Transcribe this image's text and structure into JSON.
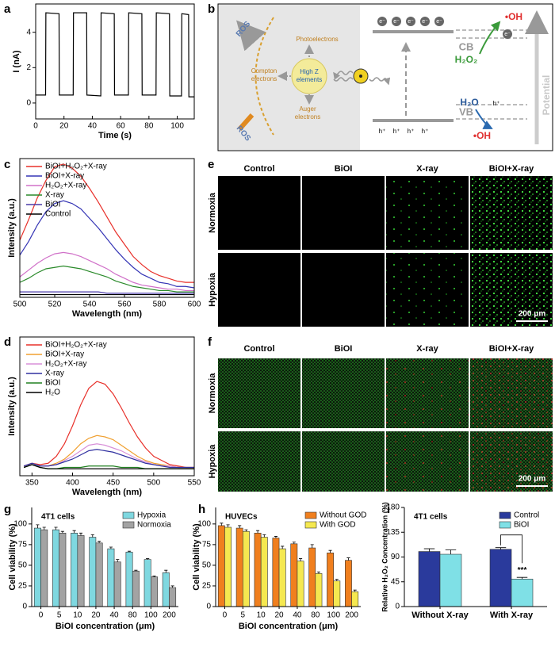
{
  "panel_labels": [
    "a",
    "b",
    "c",
    "d",
    "e",
    "f",
    "g",
    "h",
    "i"
  ],
  "chart_data": [
    {
      "type": "line",
      "x_label": "Time (s)",
      "y_label": "I (nA)",
      "x": [
        0,
        7,
        7.2,
        16.5,
        16.7,
        26.5,
        26.7,
        36,
        36.2,
        46,
        46.2,
        55.5,
        55.7,
        65.5,
        65.7,
        75,
        75.2,
        85,
        85.2,
        94.5,
        94.7,
        103,
        103.2,
        108,
        108.2,
        112
      ],
      "series": [
        {
          "color": "#000000",
          "values": [
            0.45,
            0.45,
            5.1,
            5.05,
            0.45,
            0.45,
            5.1,
            5.1,
            0.45,
            0.4,
            5.1,
            5.05,
            0.45,
            0.45,
            5.1,
            5.05,
            0.45,
            0.45,
            5.1,
            5.05,
            0.4,
            0.4,
            5.05,
            5.0,
            0.35,
            0.35
          ]
        }
      ],
      "xlim": [
        0,
        112
      ],
      "ylim": [
        -0.9,
        5.6
      ],
      "xticks": [
        0,
        20,
        40,
        60,
        80,
        100
      ],
      "yticks": [
        0,
        2,
        4
      ]
    },
    {
      "type": "line",
      "x_label": "Wavelength (nm)",
      "y_label": "Intensity (a.u.)",
      "legend": "upper left",
      "x": [
        500,
        505,
        510,
        515,
        520,
        525,
        530,
        535,
        540,
        545,
        550,
        555,
        560,
        565,
        570,
        575,
        580,
        585,
        590,
        595,
        600
      ],
      "series": [
        {
          "name": "BiOI+H₂O₂+X-ray",
          "color": "#e8302a",
          "values": [
            42,
            57,
            73,
            86,
            96,
            98,
            95,
            89,
            80,
            70,
            59,
            48,
            39,
            30,
            24,
            19,
            16,
            14,
            12,
            11,
            11
          ]
        },
        {
          "name": "BiOI+X-ray",
          "color": "#3535b5",
          "values": [
            31,
            41,
            53,
            63,
            69,
            71,
            69,
            65,
            58,
            51,
            43,
            35,
            28,
            22,
            17,
            14,
            11,
            10,
            8,
            8,
            7
          ]
        },
        {
          "name": "H₂O₂+X-ray",
          "color": "#d070c8",
          "values": [
            15,
            20,
            25,
            29,
            32,
            33,
            32,
            30,
            27,
            24,
            21,
            17,
            14,
            11,
            9,
            8,
            7,
            6,
            6,
            5,
            5
          ]
        },
        {
          "name": "X-ray",
          "color": "#2a8a2a",
          "values": [
            11,
            14,
            18,
            21,
            22,
            23,
            22,
            21,
            19,
            17,
            15,
            12,
            10,
            8,
            7,
            6,
            5,
            5,
            4,
            4,
            4
          ]
        },
        {
          "name": "BiOI",
          "color": "#4a3aa8",
          "values": [
            4,
            4,
            4,
            4,
            4,
            4,
            4,
            4,
            4,
            4,
            3,
            3,
            3,
            3,
            3,
            3,
            3,
            3,
            3,
            3,
            3
          ]
        },
        {
          "name": "Control",
          "color": "#000000",
          "values": [
            2,
            2,
            2,
            2,
            2,
            2,
            2,
            2,
            2,
            2,
            2,
            2,
            2,
            2,
            2,
            2,
            2,
            2,
            2,
            2,
            2
          ]
        }
      ],
      "xlim": [
        500,
        600
      ],
      "ylim": [
        0,
        102
      ],
      "xticks": [
        500,
        520,
        540,
        560,
        580,
        600
      ]
    },
    {
      "type": "line",
      "x_label": "Wavelength (nm)",
      "y_label": "Intensity (a.u.)",
      "legend": "upper left",
      "x": [
        340,
        350,
        360,
        370,
        380,
        390,
        400,
        410,
        420,
        430,
        440,
        450,
        460,
        470,
        480,
        490,
        500,
        510,
        520,
        530,
        540,
        550
      ],
      "series": [
        {
          "name": "BiOI+H₂O₂+X-ray",
          "color": "#e8302a",
          "values": [
            7,
            9,
            8,
            9,
            14,
            23,
            36,
            51,
            63,
            68,
            66,
            59,
            49,
            38,
            28,
            20,
            14,
            11,
            8,
            7,
            6,
            6
          ]
        },
        {
          "name": "BiOI+X-ray",
          "color": "#f0a030",
          "values": [
            7,
            9,
            7,
            7,
            9,
            12,
            17,
            23,
            27,
            29,
            28,
            26,
            22,
            18,
            14,
            11,
            9,
            8,
            7,
            6,
            6,
            6
          ]
        },
        {
          "name": "H₂O₂+X-ray",
          "color": "#d890d8",
          "values": [
            7,
            9,
            7,
            7,
            8,
            11,
            14,
            18,
            22,
            23,
            22,
            20,
            18,
            15,
            12,
            10,
            8,
            7,
            7,
            6,
            6,
            6
          ]
        },
        {
          "name": "X-ray",
          "color": "#3030a0",
          "values": [
            7,
            9,
            7,
            7,
            8,
            10,
            12,
            15,
            18,
            19,
            18,
            17,
            15,
            13,
            11,
            9,
            8,
            7,
            6,
            6,
            6,
            6
          ]
        },
        {
          "name": "BiOI",
          "color": "#208020",
          "values": [
            6,
            8,
            6,
            5,
            5,
            6,
            6,
            6,
            7,
            7,
            7,
            7,
            6,
            6,
            6,
            5,
            5,
            5,
            5,
            5,
            5,
            5
          ]
        },
        {
          "name": "H₂O",
          "color": "#000000",
          "values": [
            6,
            8,
            6,
            5,
            5,
            5,
            5,
            5,
            5,
            5,
            5,
            5,
            5,
            5,
            5,
            5,
            5,
            5,
            5,
            5,
            5,
            5
          ]
        }
      ],
      "xlim": [
        335,
        550
      ],
      "ylim": [
        0,
        100
      ],
      "xticks": [
        350,
        400,
        450,
        500,
        550
      ]
    },
    {
      "type": "bar",
      "title": "4T1 cells",
      "x_label": "BiOI concentration (μm)",
      "y_label": "Cell viability (%)",
      "legend": "upper right",
      "categories": [
        "0",
        "5",
        "10",
        "20",
        "40",
        "80",
        "100",
        "200"
      ],
      "series": [
        {
          "name": "Hypoxia",
          "color": "#7fd8e0",
          "values": [
            95,
            93,
            89,
            84,
            70,
            66,
            57,
            41
          ],
          "errors": [
            4,
            3,
            3,
            3,
            2,
            1,
            1,
            3
          ]
        },
        {
          "name": "Normoxia",
          "color": "#a3a3a3",
          "values": [
            93,
            89,
            86,
            77,
            54,
            43,
            36,
            23
          ],
          "errors": [
            3,
            2,
            3,
            2,
            3,
            1,
            1,
            2
          ]
        }
      ],
      "ylim": [
        0,
        120
      ],
      "yticks": [
        0,
        25,
        50,
        75,
        100
      ]
    },
    {
      "type": "bar",
      "title": "HUVECs",
      "x_label": "BiOI concentration (μm)",
      "y_label": "Cell viability (%)",
      "legend": "upper right",
      "categories": [
        "0",
        "5",
        "10",
        "20",
        "40",
        "80",
        "100",
        "200"
      ],
      "series": [
        {
          "name": "Without GOD",
          "color": "#f07f1e",
          "values": [
            98,
            95,
            89,
            83,
            76,
            71,
            65,
            56
          ],
          "errors": [
            3,
            3,
            3,
            2,
            2,
            4,
            3,
            3
          ]
        },
        {
          "name": "With GOD",
          "color": "#f5e850",
          "values": [
            96,
            91,
            84,
            70,
            55,
            40,
            31,
            18
          ],
          "errors": [
            3,
            2,
            3,
            3,
            3,
            2,
            2,
            2
          ]
        }
      ],
      "ylim": [
        0,
        120
      ],
      "yticks": [
        0,
        25,
        50,
        75,
        100
      ]
    },
    {
      "type": "bar",
      "title": "4T1 cells",
      "y_label": "Relative H₂O₂ Concentration (%)",
      "legend": "upper right",
      "annotation": "***",
      "categories": [
        "Without X-ray",
        "With X-ray"
      ],
      "series": [
        {
          "name": "Control",
          "color": "#2a3a9c",
          "values": [
            100,
            104
          ],
          "errors": [
            5,
            3
          ]
        },
        {
          "name": "BiOI",
          "color": "#7fe0e6",
          "values": [
            95,
            50
          ],
          "errors": [
            8,
            3
          ]
        }
      ],
      "ylim": [
        0,
        180
      ],
      "yticks": [
        0,
        45,
        90,
        135,
        180
      ]
    }
  ],
  "diagram": {
    "ros_top": "ROS",
    "ros_bottom": "ROS",
    "photoelectrons": "Photoelectrons",
    "compton": [
      "Compton",
      "electrons"
    ],
    "auger": [
      "Auger",
      "electrons"
    ],
    "high_z": [
      "High Z",
      "elements"
    ],
    "electron": "e⁻",
    "hole": "h⁺",
    "cb": "CB",
    "vb": "VB",
    "h2o2": "H₂O₂",
    "oh_top": "•OH",
    "h2o": "H₂O",
    "oh_bottom": "•OH",
    "potential": "Potential"
  },
  "images_e": {
    "columns": [
      "Control",
      "BiOI",
      "X-ray",
      "BiOI+X-ray"
    ],
    "rows": [
      "Normoxia",
      "Hypoxia"
    ],
    "scale_bar": "200 μm"
  },
  "images_f": {
    "columns": [
      "Control",
      "BiOI",
      "X-ray",
      "BiOI+X-ray"
    ],
    "rows": [
      "Normoxia",
      "Hypoxia"
    ],
    "scale_bar": "200 μm"
  }
}
